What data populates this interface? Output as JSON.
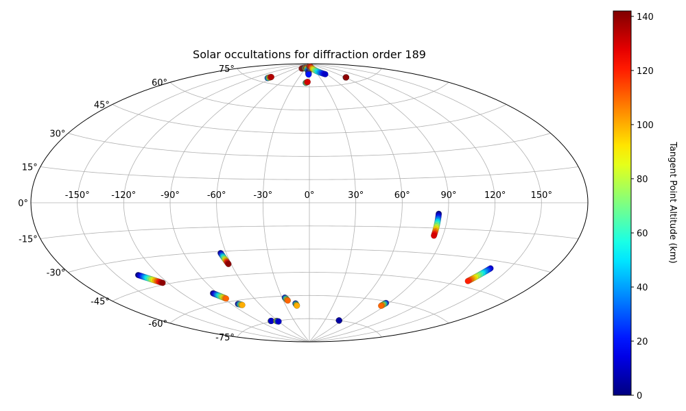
{
  "chart_data": {
    "type": "scatter",
    "projection": "aitoff",
    "title": "Solar occultations for diffraction order 189",
    "grid": true,
    "x_ticks": [
      "-150°",
      "-120°",
      "-90°",
      "-60°",
      "-30°",
      "0°",
      "30°",
      "60°",
      "90°",
      "120°",
      "150°"
    ],
    "x_tick_values": [
      -150,
      -120,
      -90,
      -60,
      -30,
      0,
      30,
      60,
      90,
      120,
      150
    ],
    "y_ticks": [
      "75°",
      "60°",
      "45°",
      "30°",
      "15°",
      "0°",
      "-15°",
      "-30°",
      "-45°",
      "-60°",
      "-75°"
    ],
    "y_tick_values": [
      75,
      60,
      45,
      30,
      15,
      0,
      -15,
      -30,
      -45,
      -60,
      -75
    ],
    "xlim": [
      -180,
      180
    ],
    "ylim": [
      -90,
      90
    ],
    "colormap": "jet",
    "colorbar": {
      "label": "Tangent Point Altitude (km)",
      "range": [
        0,
        142
      ],
      "ticks": [
        "0",
        "20",
        "40",
        "60",
        "80",
        "100",
        "120",
        "140"
      ],
      "tick_values": [
        0,
        20,
        40,
        60,
        80,
        100,
        120,
        140
      ]
    },
    "tracks": [
      {
        "lon": [
          -98,
          -96
        ],
        "lat": [
          77.5,
          78.5
        ],
        "alt": [
          20,
          135
        ]
      },
      {
        "lon": [
          -56,
          -40
        ],
        "lat": [
          86.5,
          87.2
        ],
        "alt": [
          130,
          140
        ]
      },
      {
        "lon": [
          -38,
          -22
        ],
        "lat": [
          87.2,
          87.3
        ],
        "alt": [
          30,
          20
        ]
      },
      {
        "lon": [
          -35,
          -24
        ],
        "lat": [
          87.0,
          87.3
        ],
        "alt": [
          60,
          130
        ]
      },
      {
        "lon": [
          -24,
          -3
        ],
        "lat": [
          87.3,
          85.0
        ],
        "alt": [
          120,
          20
        ]
      },
      {
        "lon": [
          -4,
          -3
        ],
        "lat": [
          84.5,
          83.0
        ],
        "alt": [
          10,
          20
        ]
      },
      {
        "lon": [
          -8,
          -4
        ],
        "lat": [
          77.6,
          78.2
        ],
        "alt": [
          40,
          130
        ]
      },
      {
        "lon": [
          0,
          14
        ],
        "lat": [
          88.2,
          88.0
        ],
        "alt": [
          130,
          100
        ]
      },
      {
        "lon": [
          8,
          16
        ],
        "lat": [
          87.1,
          87.4
        ],
        "alt": [
          130,
          20
        ]
      },
      {
        "lon": [
          14,
          56
        ],
        "lat": [
          88.0,
          82.5
        ],
        "alt": [
          130,
          10
        ]
      },
      {
        "lon": [
          91,
          92
        ],
        "lat": [
          78.5,
          78.5
        ],
        "alt": [
          140,
          140
        ]
      },
      {
        "lon": [
          84,
          84
        ],
        "lat": [
          -6.5,
          -19.5
        ],
        "alt": [
          0,
          130
        ]
      },
      {
        "lon": [
          -135,
          -124
        ],
        "lat": [
          -38,
          -44
        ],
        "alt": [
          0,
          140
        ]
      },
      {
        "lon": [
          -64,
          -62
        ],
        "lat": [
          -31,
          -38
        ],
        "alt": [
          0,
          140
        ]
      },
      {
        "lon": [
          -94,
          -88
        ],
        "lat": [
          -54,
          -58
        ],
        "alt": [
          0,
          110
        ]
      },
      {
        "lon": [
          -83,
          -80
        ],
        "lat": [
          -62,
          -63
        ],
        "alt": [
          0,
          100
        ]
      },
      {
        "lon": [
          -27,
          -25
        ],
        "lat": [
          -61,
          -63
        ],
        "alt": [
          10,
          110
        ]
      },
      {
        "lon": [
          -17,
          -16
        ],
        "lat": [
          -65,
          -66.5
        ],
        "alt": [
          10,
          100
        ]
      },
      {
        "lon": [
          -72,
          -71
        ],
        "lat": [
          -74.5,
          -74.5
        ],
        "alt": [
          100,
          10
        ]
      },
      {
        "lon": [
          -63,
          -60
        ],
        "lat": [
          -75,
          -75.5
        ],
        "alt": [
          110,
          10
        ]
      },
      {
        "lon": [
          56,
          56
        ],
        "lat": [
          -75,
          -75
        ],
        "alt": [
          5,
          5
        ]
      },
      {
        "lon": [
          87,
          86
        ],
        "lat": [
          -61,
          -63
        ],
        "alt": [
          10,
          110
        ]
      },
      {
        "lon": [
          137,
          131
        ],
        "lat": [
          -34,
          -42
        ],
        "alt": [
          10,
          120
        ]
      }
    ]
  }
}
